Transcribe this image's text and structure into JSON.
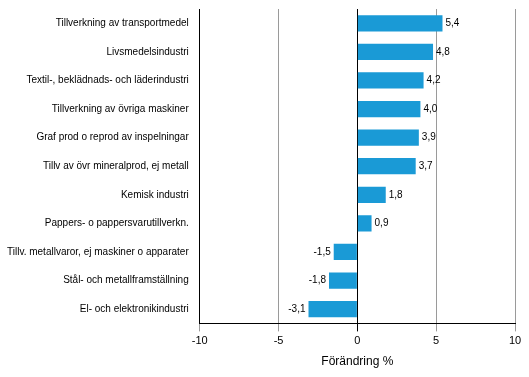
{
  "chart_data": {
    "type": "bar",
    "orientation": "horizontal",
    "categories": [
      "Tillverkning av transportmedel",
      "Livsmedelsindustri",
      "Textil-, beklädnads- och läderindustri",
      "Tillverkning av övriga maskiner",
      "Graf prod o reprod av inspelningar",
      "Tillv av övr mineralprod, ej metall",
      "Kemisk industri",
      "Pappers- o pappersvarutillverkn.",
      "Tillv. metallvaror, ej maskiner o apparater",
      "Stål- och metallframställning",
      "El- och elektronikindustri"
    ],
    "values": [
      5.4,
      4.8,
      4.2,
      4.0,
      3.9,
      3.7,
      1.8,
      0.9,
      -1.5,
      -1.8,
      -3.1
    ],
    "value_labels": [
      "5,4",
      "4,8",
      "4,2",
      "4,0",
      "3,9",
      "3,7",
      "1,8",
      "0,9",
      "-1,5",
      "-1,8",
      "-3,1"
    ],
    "data_labels": true,
    "color": "#1a9ad6",
    "x_label": "Förändring %",
    "xlim": [
      -10,
      10
    ],
    "xticks": [
      -10,
      -5,
      0,
      5,
      10
    ],
    "grid": true
  }
}
